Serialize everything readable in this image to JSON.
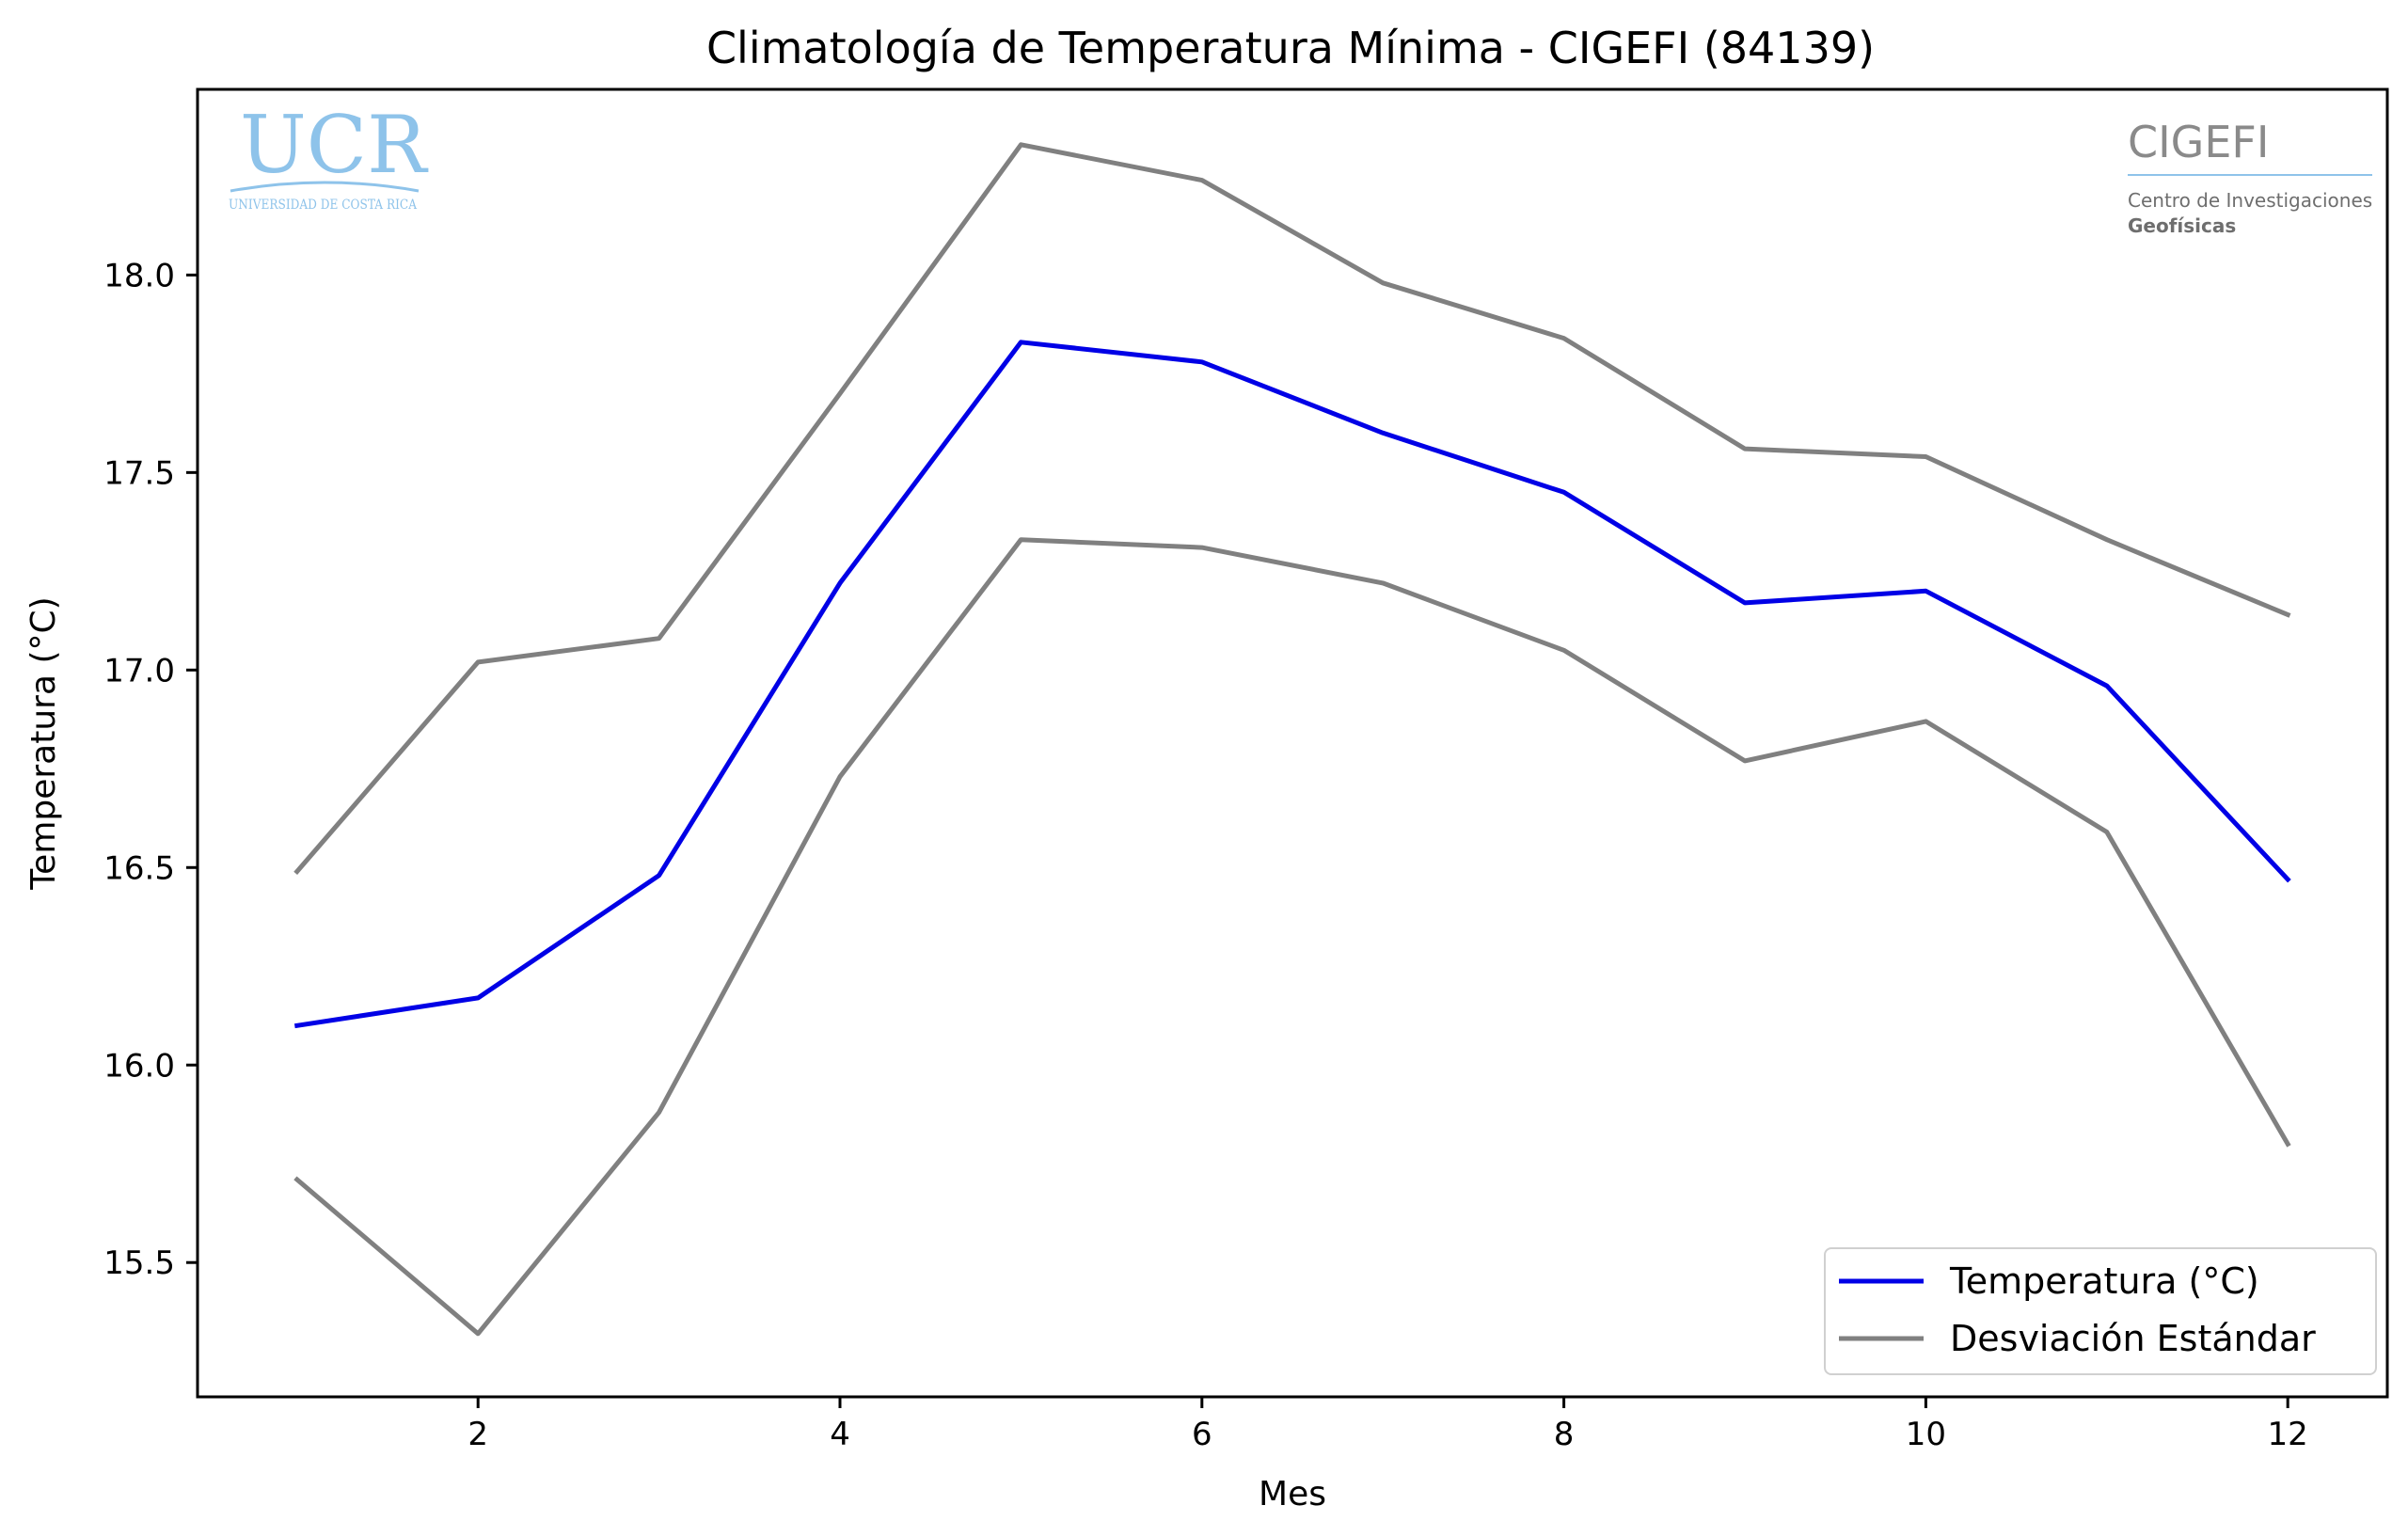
{
  "chart_data": {
    "type": "line",
    "title": "Climatología de Temperatura Mínima - CIGEFI (84139)",
    "xlabel": "Mes",
    "ylabel": "Temperatura (°C)",
    "x": [
      1,
      2,
      3,
      4,
      5,
      6,
      7,
      8,
      9,
      10,
      11,
      12
    ],
    "xlim": [
      0.45,
      12.55
    ],
    "ylim": [
      15.16,
      18.47
    ],
    "x_ticks": [
      2,
      4,
      6,
      8,
      10,
      12
    ],
    "x_tick_labels": [
      "2",
      "4",
      "6",
      "8",
      "10",
      "12"
    ],
    "y_ticks": [
      15.5,
      16.0,
      16.5,
      17.0,
      17.5,
      18.0
    ],
    "y_tick_labels": [
      "15.5",
      "16.0",
      "16.5",
      "17.0",
      "17.5",
      "18.0"
    ],
    "grid": false,
    "legend_position": "lower-right",
    "series": [
      {
        "name": "Temperatura (°C)",
        "color": "#0000e6",
        "values": [
          16.1,
          16.17,
          16.48,
          17.22,
          17.83,
          17.78,
          17.6,
          17.45,
          17.17,
          17.2,
          16.96,
          16.47
        ]
      },
      {
        "name": "Desviación Estándar",
        "color": "#808080",
        "legend": true,
        "values": [
          16.49,
          17.02,
          17.08,
          17.7,
          18.33,
          18.24,
          17.98,
          17.84,
          17.56,
          17.54,
          17.33,
          17.14
        ]
      },
      {
        "name": "",
        "color": "#808080",
        "legend": false,
        "values": [
          15.71,
          15.32,
          15.88,
          16.73,
          17.33,
          17.31,
          17.22,
          17.05,
          16.77,
          16.87,
          16.59,
          15.8
        ]
      }
    ]
  },
  "logos": {
    "ucr": {
      "text": "UCR",
      "subtext": "UNIVERSIDAD DE COSTA RICA",
      "color": "#8ec3ea"
    },
    "cigefi": {
      "text": "CIGEFI",
      "line1": "Centro de Investigaciones",
      "line2": "Geofísicas",
      "color": "#8a8a8a",
      "rule_color": "#8ec3ea"
    }
  }
}
